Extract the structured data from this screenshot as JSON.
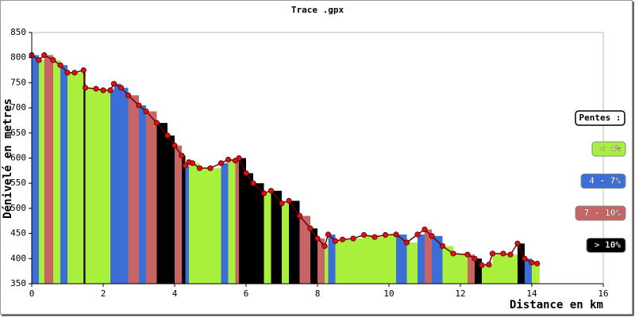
{
  "chart_data": {
    "type": "profile",
    "title": "Trace .gpx",
    "xlabel": "Distance en km",
    "ylabel": "Dénivelé en metres",
    "xlim": [
      0,
      16
    ],
    "xticks": [
      0,
      2,
      4,
      6,
      8,
      10,
      12,
      14,
      16
    ],
    "ylim": [
      350,
      850
    ],
    "yticks": [
      350,
      400,
      450,
      500,
      550,
      600,
      650,
      700,
      750,
      800,
      850
    ],
    "marker_color": "#dd1111",
    "legend": {
      "title": "Pentes :",
      "items": [
        {
          "label": "< 4%",
          "color": "#a8f03c"
        },
        {
          "label": "4 - 7%",
          "color": "#3c6ed8"
        },
        {
          "label": "7 - 10%",
          "color": "#c86464"
        },
        {
          "label": "> 10%",
          "color": "#000000"
        }
      ]
    },
    "x": [
      0,
      0.2,
      0.35,
      0.6,
      0.8,
      1.0,
      1.2,
      1.45,
      1.5,
      1.8,
      2.0,
      2.2,
      2.3,
      2.5,
      2.7,
      3.0,
      3.2,
      3.5,
      3.8,
      4.0,
      4.2,
      4.3,
      4.4,
      4.5,
      4.7,
      5.0,
      5.3,
      5.5,
      5.7,
      5.8,
      6.0,
      6.2,
      6.5,
      6.7,
      7.0,
      7.2,
      7.5,
      7.8,
      8.0,
      8.2,
      8.3,
      8.5,
      8.7,
      9.0,
      9.3,
      9.6,
      9.9,
      10.2,
      10.5,
      10.8,
      11.0,
      11.2,
      11.5,
      11.8,
      12.2,
      12.4,
      12.6,
      12.8,
      12.9,
      13.2,
      13.4,
      13.6,
      13.8,
      14.0,
      14.15
    ],
    "values": [
      805,
      795,
      805,
      795,
      785,
      770,
      770,
      775,
      740,
      738,
      735,
      735,
      748,
      740,
      725,
      705,
      693,
      670,
      645,
      625,
      605,
      585,
      592,
      590,
      580,
      580,
      590,
      597,
      595,
      600,
      570,
      550,
      530,
      535,
      510,
      515,
      485,
      460,
      440,
      425,
      448,
      435,
      438,
      440,
      447,
      443,
      447,
      448,
      432,
      448,
      458,
      445,
      425,
      410,
      408,
      400,
      387,
      388,
      410,
      410,
      408,
      430,
      400,
      392,
      390
    ],
    "bar_colors": [
      "#3c6ed8",
      "#a8f03c",
      "#c86464",
      "#a8f03c",
      "#3c6ed8",
      "#a8f03c",
      "#a8f03c",
      "#000000",
      "#a8f03c",
      "#a8f03c",
      "#a8f03c",
      "#3c6ed8",
      "#3c6ed8",
      "#3c6ed8",
      "#c86464",
      "#3c6ed8",
      "#c86464",
      "#000000",
      "#000000",
      "#c86464",
      "#000000",
      "#3c6ed8",
      "#a8f03c",
      "#a8f03c",
      "#a8f03c",
      "#a8f03c",
      "#3c6ed8",
      "#a8f03c",
      "#c86464",
      "#000000",
      "#000000",
      "#000000",
      "#a8f03c",
      "#000000",
      "#a8f03c",
      "#000000",
      "#c86464",
      "#000000",
      "#c86464",
      "#a8f03c",
      "#3c6ed8",
      "#a8f03c",
      "#a8f03c",
      "#a8f03c",
      "#a8f03c",
      "#a8f03c",
      "#a8f03c",
      "#3c6ed8",
      "#a8f03c",
      "#3c6ed8",
      "#c86464",
      "#3c6ed8",
      "#a8f03c",
      "#a8f03c",
      "#c86464",
      "#000000",
      "#a8f03c",
      "#a8f03c",
      "#a8f03c",
      "#a8f03c",
      "#a8f03c",
      "#000000",
      "#3c6ed8",
      "#a8f03c",
      "#a8f03c"
    ]
  }
}
